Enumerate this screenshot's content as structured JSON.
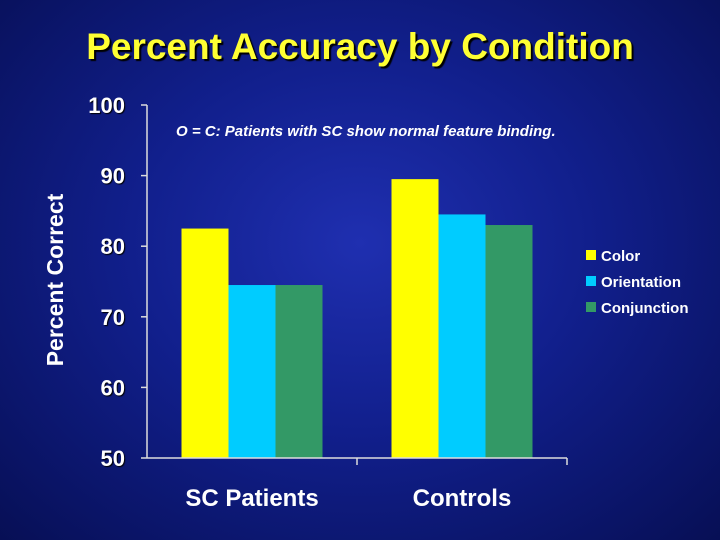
{
  "slide": {
    "title": "Percent Accuracy by Condition"
  },
  "chart_data": {
    "type": "bar",
    "title": "Percent Accuracy by Condition",
    "categories": [
      "SC Patients",
      "Controls"
    ],
    "series": [
      {
        "name": "Color",
        "values": [
          82.5,
          89.5
        ],
        "color": "#ffff00"
      },
      {
        "name": "Orientation",
        "values": [
          74.5,
          84.5
        ],
        "color": "#00ccff"
      },
      {
        "name": "Conjunction",
        "values": [
          74.5,
          83
        ],
        "color": "#339966"
      }
    ],
    "ylabel": "Percent Correct",
    "xlabel": "",
    "ylim": [
      50,
      100
    ],
    "yticks": [
      50,
      60,
      70,
      80,
      90,
      100
    ],
    "annotation": "O = C: Patients with SC show normal feature binding.",
    "legend_position": "right"
  }
}
